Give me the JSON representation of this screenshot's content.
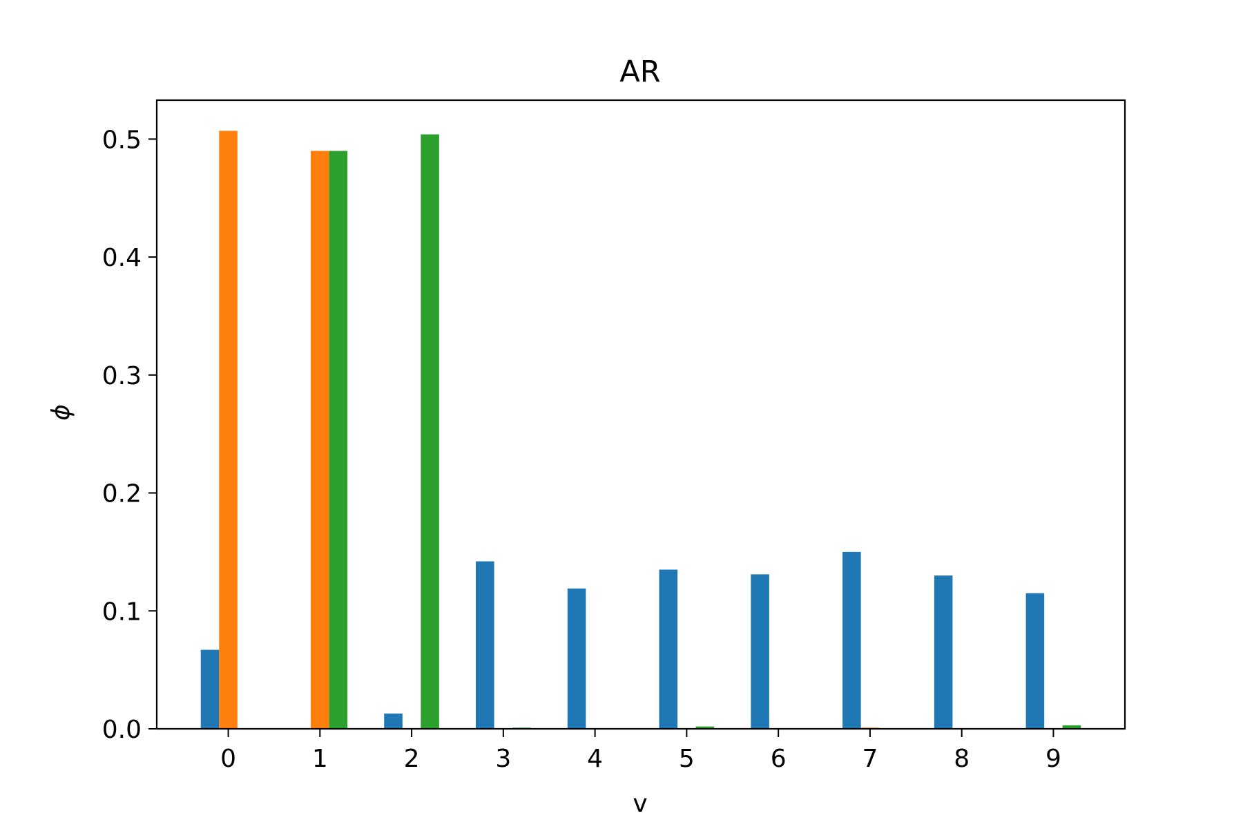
{
  "chart_data": {
    "type": "bar",
    "title": "AR",
    "xlabel": "v",
    "ylabel": "ϕ",
    "categories": [
      "0",
      "1",
      "2",
      "3",
      "4",
      "5",
      "6",
      "7",
      "8",
      "9"
    ],
    "series": [
      {
        "color": "#1f77b4",
        "values": [
          0.067,
          0.0,
          0.013,
          0.142,
          0.119,
          0.135,
          0.131,
          0.15,
          0.13,
          0.115
        ]
      },
      {
        "color": "#ff7f0e",
        "values": [
          0.507,
          0.49,
          0.0,
          0.0,
          0.0,
          0.0,
          0.0,
          0.001,
          0.0,
          0.0
        ]
      },
      {
        "color": "#2ca02c",
        "values": [
          0.0,
          0.49,
          0.504,
          0.001,
          0.0,
          0.002,
          0.0,
          0.0,
          0.0,
          0.003
        ]
      }
    ],
    "yticks": [
      "0.0",
      "0.1",
      "0.2",
      "0.3",
      "0.4",
      "0.5"
    ],
    "ylim": [
      0,
      0.533
    ],
    "xlim": [
      -0.78,
      9.78
    ],
    "grid": false,
    "legend": false
  }
}
